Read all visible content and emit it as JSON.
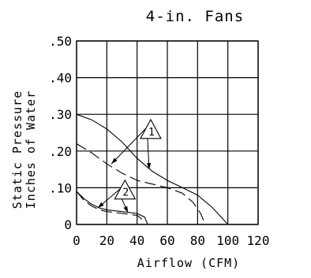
{
  "chart_data": {
    "type": "line",
    "title": "4-in. Fans",
    "xlabel": "Airflow (CFM)",
    "ylabel": [
      "Static Pressure",
      "Inches of Water"
    ],
    "xlim": [
      0,
      120
    ],
    "ylim": [
      0,
      0.5
    ],
    "x_ticks": [
      0,
      20,
      40,
      60,
      80,
      100,
      120
    ],
    "x_tick_labels": [
      "0",
      "20",
      "40",
      "60",
      "80",
      "100",
      "120"
    ],
    "y_ticks": [
      0,
      0.1,
      0.2,
      0.3,
      0.4,
      0.5
    ],
    "y_tick_labels": [
      "0",
      ".10",
      ".20",
      ".30",
      ".40",
      ".50"
    ],
    "grid": true,
    "series": [
      {
        "style": "solid",
        "group": "1",
        "x": [
          0,
          10,
          20,
          30,
          40,
          50,
          60,
          70,
          80,
          90,
          100
        ],
        "y": [
          0.3,
          0.285,
          0.26,
          0.225,
          0.18,
          0.145,
          0.12,
          0.1,
          0.08,
          0.045,
          0.0
        ]
      },
      {
        "style": "dashed",
        "group": "1",
        "x": [
          0,
          10,
          20,
          30,
          40,
          50,
          60,
          70,
          77,
          82,
          85
        ],
        "y": [
          0.22,
          0.195,
          0.165,
          0.14,
          0.12,
          0.11,
          0.1,
          0.085,
          0.06,
          0.03,
          0.0
        ]
      },
      {
        "style": "solid",
        "group": "2",
        "x": [
          0,
          5,
          10,
          15,
          20,
          30,
          40,
          45,
          47
        ],
        "y": [
          0.09,
          0.07,
          0.055,
          0.045,
          0.04,
          0.035,
          0.03,
          0.02,
          0.0
        ]
      },
      {
        "style": "dashed",
        "group": "2",
        "x": [
          0,
          5,
          10,
          15,
          20,
          30,
          40,
          43,
          44
        ],
        "y": [
          0.09,
          0.065,
          0.05,
          0.04,
          0.035,
          0.03,
          0.025,
          0.015,
          0.0
        ]
      }
    ],
    "annotations": [
      {
        "label": "1",
        "anchor": [
          49,
          0.26
        ],
        "targets": [
          [
            23,
            0.165
          ],
          [
            48,
            0.15
          ]
        ]
      },
      {
        "label": "2",
        "anchor": [
          32,
          0.095
        ],
        "targets": [
          [
            14,
            0.045
          ],
          [
            34,
            0.032
          ]
        ]
      }
    ]
  }
}
